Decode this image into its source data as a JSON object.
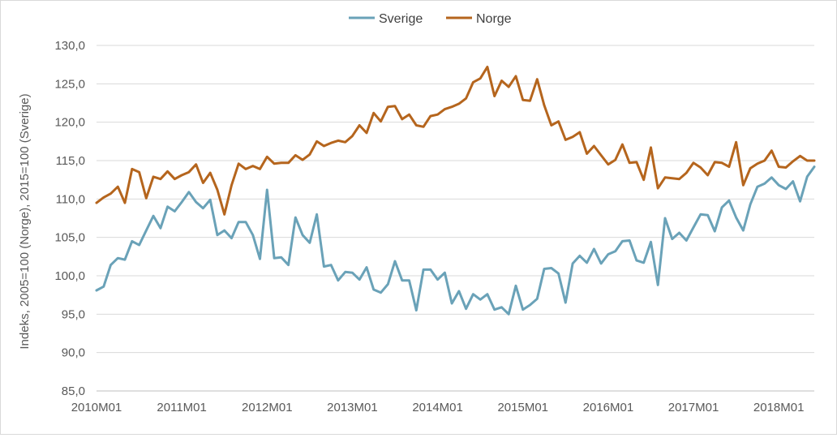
{
  "chart_data": {
    "type": "line",
    "title": "",
    "ylabel": "Indeks, 2005=100 (Norge), 2015=100 (Sverige)",
    "xlabel": "",
    "ylim": [
      85,
      130
    ],
    "y_ticks": [
      "85,0",
      "90,0",
      "95,0",
      "100,0",
      "105,0",
      "110,0",
      "115,0",
      "120,0",
      "125,0",
      "130,0"
    ],
    "x_tick_labels": [
      "2010M01",
      "2011M01",
      "2012M01",
      "2013M01",
      "2014M01",
      "2015M01",
      "2016M01",
      "2017M01",
      "2018M01"
    ],
    "x_start": "2010M01",
    "x_end": "2018M06",
    "grid": true,
    "legend_position": "top-center",
    "series": [
      {
        "name": "Sverige",
        "color": "#6aa2b8",
        "values": [
          98.1,
          98.6,
          101.4,
          102.3,
          102.1,
          104.5,
          104.0,
          105.9,
          107.8,
          106.2,
          109.0,
          108.4,
          109.6,
          110.9,
          109.6,
          108.8,
          109.9,
          105.3,
          105.9,
          104.9,
          107.0,
          107.0,
          105.3,
          102.2,
          111.2,
          102.3,
          102.4,
          101.4,
          107.6,
          105.3,
          104.3,
          108.0,
          101.2,
          101.4,
          99.4,
          100.5,
          100.4,
          99.5,
          101.1,
          98.2,
          97.8,
          98.9,
          101.9,
          99.4,
          99.4,
          95.5,
          100.8,
          100.8,
          99.5,
          100.4,
          96.4,
          98.0,
          95.7,
          97.6,
          96.9,
          97.6,
          95.6,
          95.9,
          95.0,
          98.7,
          95.6,
          96.2,
          97.0,
          100.9,
          101.0,
          100.3,
          96.5,
          101.6,
          102.6,
          101.7,
          103.5,
          101.6,
          102.8,
          103.2,
          104.5,
          104.6,
          102.0,
          101.7,
          104.4,
          98.8,
          107.5,
          104.8,
          105.6,
          104.6,
          106.3,
          108.0,
          107.9,
          105.8,
          108.9,
          109.8,
          107.6,
          105.9,
          109.3,
          111.6,
          112.0,
          112.8,
          111.8,
          111.3,
          112.3,
          109.7,
          112.9,
          114.2
        ]
      },
      {
        "name": "Norge",
        "color": "#b5651d",
        "values": [
          109.5,
          110.2,
          110.7,
          111.6,
          109.5,
          113.9,
          113.5,
          110.1,
          112.9,
          112.6,
          113.6,
          112.6,
          113.1,
          113.5,
          114.5,
          112.1,
          113.4,
          111.2,
          108.0,
          111.8,
          114.6,
          113.9,
          114.3,
          113.9,
          115.5,
          114.6,
          114.7,
          114.7,
          115.7,
          115.1,
          115.8,
          117.5,
          116.9,
          117.3,
          117.6,
          117.4,
          118.2,
          119.6,
          118.6,
          121.2,
          120.1,
          122.0,
          122.1,
          120.4,
          121.0,
          119.6,
          119.4,
          120.8,
          121.0,
          121.7,
          122.0,
          122.4,
          123.1,
          125.2,
          125.7,
          127.2,
          123.4,
          125.4,
          124.6,
          126.0,
          122.9,
          122.8,
          125.6,
          122.2,
          119.6,
          120.1,
          117.7,
          118.1,
          118.7,
          115.9,
          116.9,
          115.7,
          114.5,
          115.1,
          117.1,
          114.7,
          114.8,
          112.5,
          116.7,
          111.4,
          112.8,
          112.7,
          112.6,
          113.4,
          114.7,
          114.1,
          113.1,
          114.8,
          114.7,
          114.2,
          117.4,
          111.8,
          114.0,
          114.6,
          115.0,
          116.3,
          114.2,
          114.1,
          114.9,
          115.6,
          115.0,
          115.0
        ]
      }
    ]
  }
}
